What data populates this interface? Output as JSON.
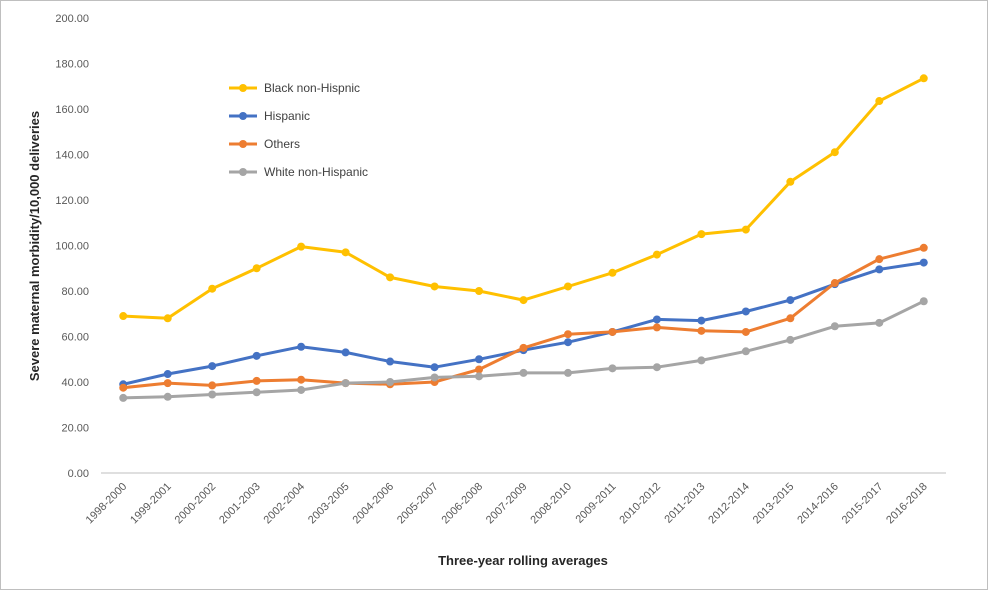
{
  "chart_data": {
    "type": "line",
    "title": "",
    "xlabel": "Three-year rolling averages",
    "ylabel": "Severe maternal morbidity/10,000 deliveries",
    "ylim": [
      0,
      200
    ],
    "yticks": [
      "0.00",
      "20.00",
      "40.00",
      "60.00",
      "80.00",
      "100.00",
      "120.00",
      "140.00",
      "160.00",
      "180.00",
      "200.00"
    ],
    "ytick_values": [
      0,
      20,
      40,
      60,
      80,
      100,
      120,
      140,
      160,
      180,
      200
    ],
    "grid": false,
    "legend_position": "top-left",
    "categories": [
      "1998-2000",
      "1999-2001",
      "2000-2002",
      "2001-2003",
      "2002-2004",
      "2003-2005",
      "2004-2006",
      "2005-2007",
      "2006-2008",
      "2007-2009",
      "2008-2010",
      "2009-2011",
      "2010-2012",
      "2011-2013",
      "2012-2014",
      "2013-2015",
      "2014-2016",
      "2015-2017",
      "2016-2018"
    ],
    "series": [
      {
        "name": "Black non-Hispnic",
        "color": "#FFC000",
        "values": [
          69,
          68,
          81,
          90,
          99.5,
          97,
          86,
          82,
          80,
          76,
          82,
          88,
          96,
          105,
          107,
          128,
          141,
          163.5,
          173.5
        ]
      },
      {
        "name": "Hispanic",
        "color": "#4472C4",
        "values": [
          39,
          43.5,
          47,
          51.5,
          55.5,
          53,
          49,
          46.5,
          50,
          54,
          57.5,
          62,
          67.5,
          67,
          71,
          76,
          83,
          89.5,
          92.5
        ]
      },
      {
        "name": "Others",
        "color": "#ED7D31",
        "values": [
          37.5,
          39.5,
          38.5,
          40.5,
          41,
          39.5,
          39,
          40,
          45.5,
          55,
          61,
          62,
          64,
          62.5,
          62,
          68,
          83.5,
          94,
          99
        ]
      },
      {
        "name": "White non-Hispanic",
        "color": "#A5A5A5",
        "values": [
          33,
          33.5,
          34.5,
          35.5,
          36.5,
          39.5,
          40,
          42,
          42.5,
          44,
          44,
          46,
          46.5,
          49.5,
          53.5,
          58.5,
          64.5,
          66,
          75.5
        ]
      }
    ]
  }
}
